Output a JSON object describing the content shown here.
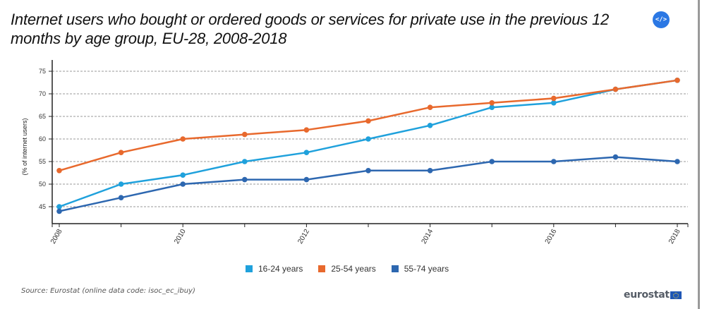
{
  "header": {
    "title": "Internet users who bought or ordered goods or services for private use in the previous 12 months by age group, EU-28, 2008-2018",
    "embed_icon": "</>"
  },
  "chart_data": {
    "type": "line",
    "title": "Internet users who bought or ordered goods or services for private use in the previous 12 months by age group, EU-28, 2008-2018",
    "xlabel": "",
    "ylabel": "(% of internet users)",
    "x": [
      2008,
      2009,
      2010,
      2011,
      2012,
      2013,
      2014,
      2015,
      2016,
      2017,
      2018
    ],
    "xticks": [
      "2008",
      "2010",
      "2012",
      "2014",
      "2016",
      "2018"
    ],
    "yticks": [
      45,
      50,
      55,
      60,
      65,
      70,
      75
    ],
    "ylim": [
      41.25,
      77.5
    ],
    "grid": true,
    "legend_position": "bottom-center",
    "series": [
      {
        "name": "16-24 years",
        "color": "#1fa1dc",
        "values": [
          45,
          50,
          52,
          55,
          57,
          60,
          63,
          67,
          68,
          71,
          73
        ]
      },
      {
        "name": "25-54 years",
        "color": "#e8692d",
        "values": [
          53,
          57,
          60,
          61,
          62,
          64,
          67,
          68,
          69,
          71,
          73
        ]
      },
      {
        "name": "55-74 years",
        "color": "#2d67b0",
        "values": [
          44,
          47,
          50,
          51,
          51,
          53,
          53,
          55,
          55,
          56,
          55
        ]
      }
    ]
  },
  "legend": {
    "items": [
      {
        "label": "16-24 years",
        "color": "#1fa1dc"
      },
      {
        "label": "25-54 years",
        "color": "#e8692d"
      },
      {
        "label": "55-74 years",
        "color": "#2d67b0"
      }
    ]
  },
  "footer": {
    "source": "Source: Eurostat (online data code: isoc_ec_ibuy)",
    "logo_text": "eurostat"
  }
}
